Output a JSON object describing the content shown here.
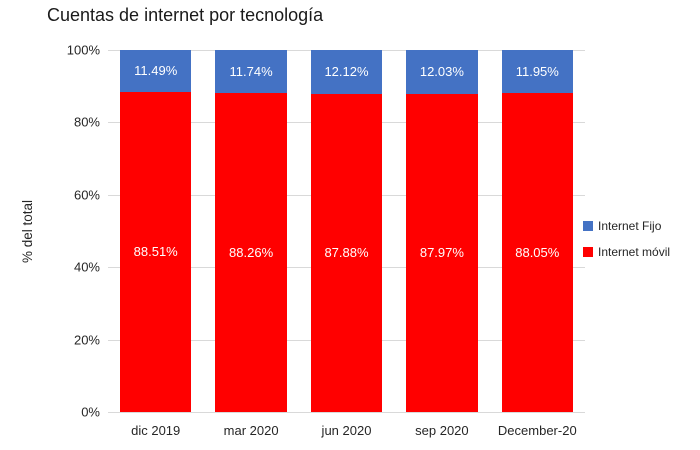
{
  "title": "Cuentas de internet por tecnología",
  "chart_data": {
    "type": "bar",
    "stacked": true,
    "title": "Cuentas de internet por tecnología",
    "categories": [
      "dic 2019",
      "mar 2020",
      "jun 2020",
      "sep 2020",
      "December-20"
    ],
    "series": [
      {
        "name": "Internet móvil",
        "color": "#ff0000",
        "values": [
          88.51,
          88.26,
          87.88,
          87.97,
          88.05
        ]
      },
      {
        "name": "Internet Fijo",
        "color": "#4472c4",
        "values": [
          11.49,
          11.74,
          12.12,
          12.03,
          11.95
        ]
      }
    ],
    "xlabel": "",
    "ylabel": "% del total",
    "ylim": [
      0,
      100
    ],
    "yticks": [
      "0%",
      "20%",
      "40%",
      "60%",
      "80%",
      "100%"
    ],
    "grid": true,
    "gridline_color": "#d9d9d9",
    "data_labels": true,
    "data_label_color": "#ffffff",
    "legend_position": "right"
  },
  "legend": {
    "items": [
      {
        "label": "Internet Fijo",
        "color": "#4472c4"
      },
      {
        "label": "Internet móvil",
        "color": "#ff0000"
      }
    ]
  }
}
